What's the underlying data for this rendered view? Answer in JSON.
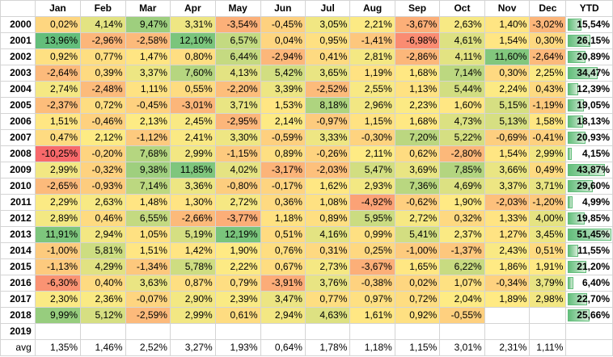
{
  "header": [
    "",
    "Jan",
    "Feb",
    "Mar",
    "Apr",
    "May",
    "Jun",
    "Jul",
    "Aug",
    "Sep",
    "Oct",
    "Nov",
    "Dec",
    "YTD"
  ],
  "rows": [
    {
      "year": "2000",
      "cells": [
        "0,02%",
        "4,14%",
        "9,47%",
        "3,31%",
        "-3,54%",
        "-0,45%",
        "3,05%",
        "2,21%",
        "-3,67%",
        "2,63%",
        "1,40%",
        "-3,02%"
      ],
      "ytd": "15,54%"
    },
    {
      "year": "2001",
      "cells": [
        "13,96%",
        "-2,96%",
        "-2,58%",
        "12,10%",
        "6,57%",
        "0,04%",
        "0,95%",
        "-1,41%",
        "-6,98%",
        "4,61%",
        "1,54%",
        "0,30%"
      ],
      "ytd": "26,15%"
    },
    {
      "year": "2002",
      "cells": [
        "0,92%",
        "0,77%",
        "1,47%",
        "0,80%",
        "6,44%",
        "-2,94%",
        "0,41%",
        "2,81%",
        "-2,86%",
        "4,11%",
        "11,60%",
        "-2,64%"
      ],
      "ytd": "20,89%"
    },
    {
      "year": "2003",
      "cells": [
        "-2,64%",
        "0,39%",
        "3,37%",
        "7,60%",
        "4,13%",
        "5,42%",
        "3,65%",
        "1,19%",
        "1,68%",
        "7,14%",
        "0,30%",
        "2,25%"
      ],
      "ytd": "34,47%"
    },
    {
      "year": "2004",
      "cells": [
        "2,74%",
        "-2,48%",
        "1,11%",
        "0,55%",
        "-2,20%",
        "3,39%",
        "-2,52%",
        "2,55%",
        "1,13%",
        "5,44%",
        "2,24%",
        "0,43%"
      ],
      "ytd": "12,39%"
    },
    {
      "year": "2005",
      "cells": [
        "-2,37%",
        "0,72%",
        "-0,45%",
        "-3,01%",
        "3,71%",
        "1,53%",
        "8,18%",
        "2,96%",
        "2,23%",
        "1,60%",
        "5,15%",
        "-1,19%"
      ],
      "ytd": "19,05%"
    },
    {
      "year": "2006",
      "cells": [
        "1,51%",
        "-0,46%",
        "2,13%",
        "2,45%",
        "-2,95%",
        "2,14%",
        "-0,97%",
        "1,15%",
        "1,68%",
        "4,73%",
        "5,13%",
        "1,58%"
      ],
      "ytd": "18,13%"
    },
    {
      "year": "2007",
      "cells": [
        "0,47%",
        "2,12%",
        "-1,12%",
        "2,41%",
        "3,30%",
        "-0,59%",
        "3,33%",
        "-0,30%",
        "7,20%",
        "5,22%",
        "-0,69%",
        "-0,41%"
      ],
      "ytd": "20,93%"
    },
    {
      "year": "2008",
      "cells": [
        "-10,25%",
        "-0,20%",
        "7,68%",
        "2,99%",
        "-1,15%",
        "0,89%",
        "-0,26%",
        "2,11%",
        "0,62%",
        "-2,80%",
        "1,54%",
        "2,99%"
      ],
      "ytd": "4,15%"
    },
    {
      "year": "2009",
      "cells": [
        "2,99%",
        "-0,32%",
        "9,38%",
        "11,85%",
        "4,02%",
        "-3,17%",
        "-2,03%",
        "5,47%",
        "3,69%",
        "7,85%",
        "3,66%",
        "0,49%"
      ],
      "ytd": "43,87%"
    },
    {
      "year": "2010",
      "cells": [
        "-2,65%",
        "-0,93%",
        "7,14%",
        "3,36%",
        "-0,80%",
        "-0,17%",
        "1,62%",
        "2,93%",
        "7,36%",
        "4,69%",
        "3,37%",
        "3,71%"
      ],
      "ytd": "29,60%"
    },
    {
      "year": "2011",
      "cells": [
        "2,29%",
        "2,63%",
        "1,48%",
        "1,30%",
        "2,72%",
        "0,36%",
        "1,08%",
        "-4,92%",
        "-0,62%",
        "1,90%",
        "-2,03%",
        "-1,20%"
      ],
      "ytd": "4,99%"
    },
    {
      "year": "2012",
      "cells": [
        "2,89%",
        "0,46%",
        "6,55%",
        "-2,66%",
        "-3,77%",
        "1,18%",
        "0,89%",
        "5,95%",
        "2,72%",
        "0,32%",
        "1,33%",
        "4,00%"
      ],
      "ytd": "19,85%"
    },
    {
      "year": "2013",
      "cells": [
        "11,91%",
        "2,94%",
        "1,05%",
        "5,19%",
        "12,19%",
        "0,51%",
        "4,16%",
        "0,99%",
        "5,41%",
        "2,37%",
        "1,27%",
        "3,45%"
      ],
      "ytd": "51,45%"
    },
    {
      "year": "2014",
      "cells": [
        "-1,00%",
        "5,81%",
        "1,51%",
        "1,42%",
        "1,90%",
        "0,76%",
        "0,31%",
        "0,25%",
        "-1,00%",
        "-1,37%",
        "2,43%",
        "0,51%"
      ],
      "ytd": "11,55%"
    },
    {
      "year": "2015",
      "cells": [
        "-1,13%",
        "4,29%",
        "-1,34%",
        "5,78%",
        "2,22%",
        "0,67%",
        "2,73%",
        "-3,67%",
        "1,65%",
        "6,22%",
        "1,86%",
        "1,91%"
      ],
      "ytd": "21,20%"
    },
    {
      "year": "2016",
      "cells": [
        "-6,30%",
        "0,40%",
        "3,63%",
        "0,87%",
        "0,79%",
        "-3,91%",
        "3,76%",
        "-0,38%",
        "0,02%",
        "1,07%",
        "-0,34%",
        "3,79%"
      ],
      "ytd": "6,40%"
    },
    {
      "year": "2017",
      "cells": [
        "2,30%",
        "2,36%",
        "-0,07%",
        "2,90%",
        "2,39%",
        "3,47%",
        "0,77%",
        "0,97%",
        "0,72%",
        "2,04%",
        "1,89%",
        "2,98%"
      ],
      "ytd": "22,70%"
    },
    {
      "year": "2018",
      "cells": [
        "9,99%",
        "5,12%",
        "-2,59%",
        "2,99%",
        "0,61%",
        "2,94%",
        "4,63%",
        "1,61%",
        "0,92%",
        "-0,55%",
        "",
        ""
      ],
      "ytd": "25,66%"
    },
    {
      "year": "2019",
      "cells": [
        "",
        "",
        "",
        "",
        "",
        "",
        "",
        "",
        "",
        "",
        "",
        ""
      ],
      "ytd": ""
    }
  ],
  "avg": {
    "label": "avg",
    "cells": [
      "1,35%",
      "1,46%",
      "2,52%",
      "3,27%",
      "1,93%",
      "0,64%",
      "1,78%",
      "1,18%",
      "1,15%",
      "3,01%",
      "2,31%",
      "1,11%"
    ],
    "ytd": ""
  },
  "colors": {
    "low": "#f8696b",
    "mid": "#ffeb84",
    "high": "#63be7b",
    "bar": "#63be7b"
  }
}
